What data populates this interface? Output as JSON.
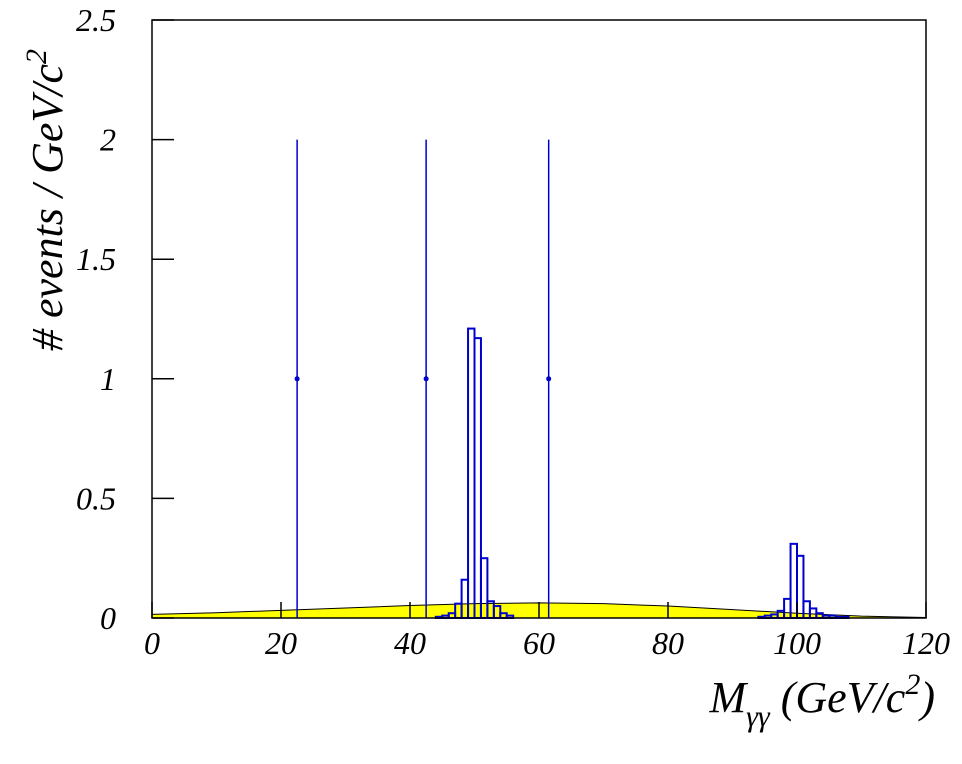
{
  "chart_data": {
    "type": "histogram",
    "ylabel": [
      "# events / GeV/c",
      "2"
    ],
    "xlabel": [
      "M",
      "γγ",
      " (GeV/c",
      "2",
      ")"
    ],
    "xlim": [
      0,
      120
    ],
    "ylim": [
      0,
      2.5
    ],
    "xticks": [
      0,
      20,
      40,
      60,
      80,
      100,
      120
    ],
    "yticks": [
      0,
      0.5,
      1,
      1.5,
      2,
      2.5
    ],
    "background": {
      "color": "#ffff00",
      "x": [
        0,
        10,
        20,
        30,
        40,
        50,
        60,
        70,
        80,
        90,
        100,
        110,
        120
      ],
      "values": [
        0.015,
        0.022,
        0.032,
        0.042,
        0.052,
        0.06,
        0.063,
        0.06,
        0.05,
        0.035,
        0.02,
        0.008,
        0.002
      ]
    },
    "histogram": {
      "color": "#0000cc",
      "bins": [
        44,
        45,
        46,
        47,
        48,
        49,
        50,
        51,
        52,
        53,
        54,
        55,
        56,
        57,
        58,
        59,
        60,
        61,
        62,
        63,
        64,
        65,
        66,
        67,
        68,
        69,
        70,
        71,
        72,
        73,
        74,
        75,
        76,
        77,
        78,
        79,
        80,
        81,
        82,
        83,
        84,
        85,
        86,
        87,
        88,
        89,
        90,
        91,
        92,
        93,
        94,
        95,
        96,
        97,
        98,
        99,
        100,
        101,
        102,
        103,
        104,
        105,
        106,
        107,
        108
      ],
      "counts": [
        0.005,
        0.01,
        0.02,
        0.06,
        0.16,
        1.21,
        1.17,
        0.25,
        0.07,
        0.05,
        0.02,
        0.01,
        0,
        0,
        0,
        0,
        0,
        0,
        0,
        0,
        0,
        0,
        0,
        0,
        0,
        0,
        0,
        0,
        0,
        0,
        0,
        0,
        0,
        0,
        0,
        0,
        0,
        0,
        0,
        0,
        0,
        0,
        0,
        0,
        0,
        0,
        0,
        0,
        0,
        0,
        0.005,
        0.01,
        0.015,
        0.03,
        0.08,
        0.31,
        0.26,
        0.07,
        0.04,
        0.02,
        0.01,
        0.01,
        0.005,
        0.005
      ]
    },
    "points": {
      "color": "#0000cc",
      "x": [
        22.5,
        42.5,
        61.5
      ],
      "values": [
        1,
        1,
        1
      ],
      "errors": [
        1,
        1,
        1
      ]
    }
  }
}
